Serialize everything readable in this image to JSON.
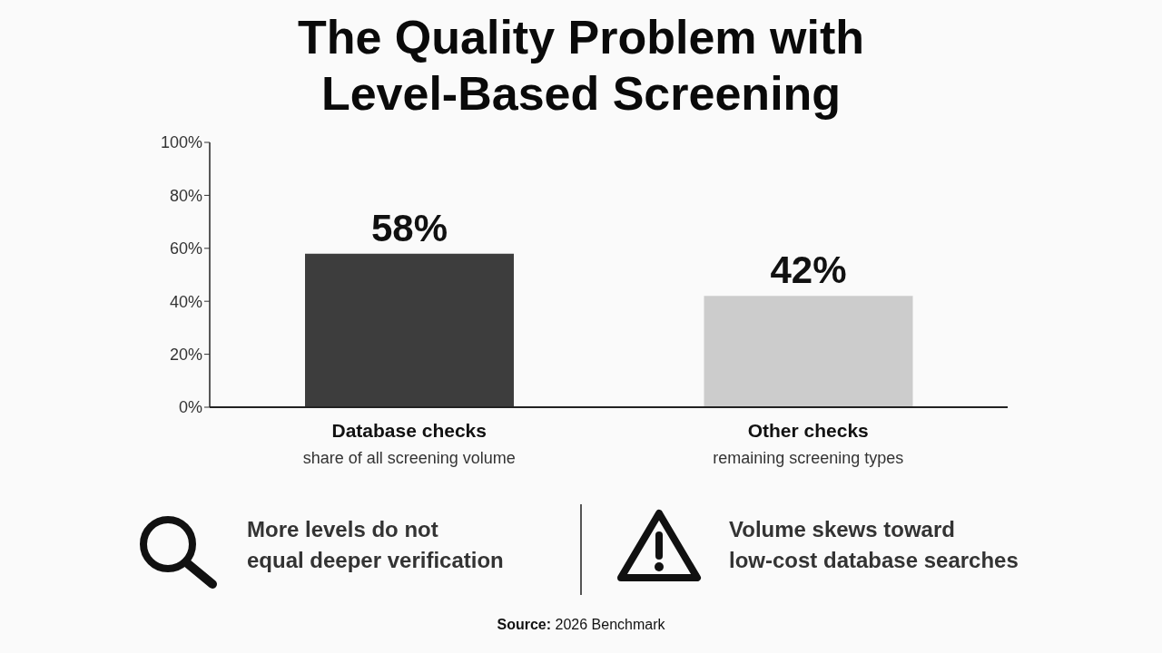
{
  "chart_data": {
    "type": "bar",
    "title": "The Quality Problem with Level-Based Screening",
    "categories": [
      "Database checks\nshare of all screening volume",
      "Other checks\nremaining screening types"
    ],
    "values": [
      58,
      42
    ],
    "colors": [
      "#3d3d3d",
      "#cccccc"
    ],
    "value_labels": [
      "58%",
      "42%"
    ],
    "ylim": [
      0,
      100
    ],
    "yticks": [
      {
        "value": 0,
        "label": "0%"
      },
      {
        "value": 20,
        "label": "20%"
      },
      {
        "value": 40,
        "label": "40%"
      },
      {
        "value": 60,
        "label": "60%"
      },
      {
        "value": 80,
        "label": "80%"
      },
      {
        "value": 100,
        "label": "100%"
      }
    ],
    "annotations": [
      "More levels do not\nequal deeper verification",
      "Volume skews toward\nlow-cost database searches",
      "Source: 2026 Benchmark"
    ]
  }
}
